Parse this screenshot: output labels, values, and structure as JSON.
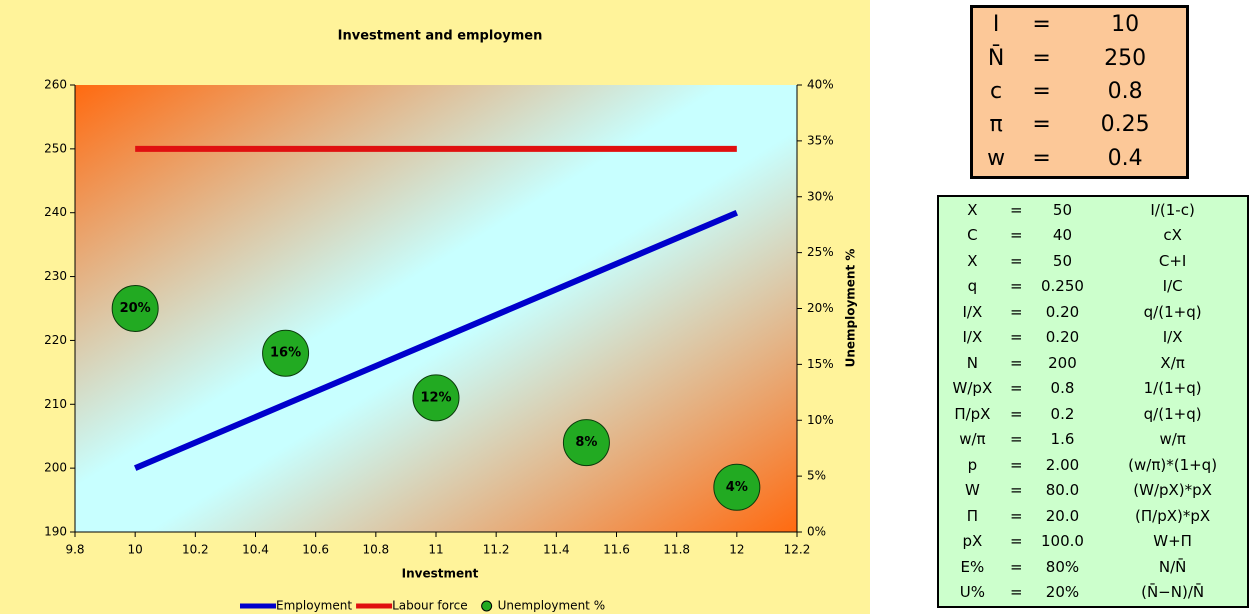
{
  "chart_data": {
    "type": "line",
    "title": "Investment and employmen",
    "x_label": "Investment",
    "y2_label": "Unemployment %",
    "x": [
      10,
      10.5,
      11,
      11.5,
      12
    ],
    "series": [
      {
        "name": "Employment",
        "color": "#0000cc",
        "values": [
          200,
          210,
          220,
          230,
          240
        ]
      },
      {
        "name": "Labour force",
        "color": "#e01010",
        "values": [
          250,
          250,
          250,
          250,
          250
        ]
      },
      {
        "name": "Unemployment %",
        "color": "#22aa22",
        "axis": "y2",
        "marker": "circle",
        "values": [
          20,
          16,
          12,
          8,
          4
        ],
        "value_labels": [
          "20%",
          "16%",
          "12%",
          "8%",
          "4%"
        ]
      }
    ],
    "xlim": [
      9.8,
      12.2
    ],
    "xticks": [
      9.8,
      10,
      10.2,
      10.4,
      10.6,
      10.8,
      11,
      11.2,
      11.4,
      11.6,
      11.8,
      12,
      12.2
    ],
    "ylim": [
      190,
      260
    ],
    "yticks": [
      190,
      200,
      210,
      220,
      230,
      240,
      250,
      260
    ],
    "y2lim": [
      0,
      40
    ],
    "y2ticks": [
      {
        "value": 0,
        "label": "0%"
      },
      {
        "value": 5,
        "label": "5%"
      },
      {
        "value": 10,
        "label": "10%"
      },
      {
        "value": 15,
        "label": "15%"
      },
      {
        "value": 20,
        "label": "20%"
      },
      {
        "value": 25,
        "label": "25%"
      },
      {
        "value": 30,
        "label": "30%"
      },
      {
        "value": 35,
        "label": "35%"
      },
      {
        "value": 40,
        "label": "40%"
      }
    ],
    "grid": false,
    "legend": "bottom"
  },
  "params": {
    "rows": [
      [
        "I",
        "=",
        "10"
      ],
      [
        "N̄",
        "=",
        "250"
      ],
      [
        "c",
        "=",
        "0.8"
      ],
      [
        "π",
        "=",
        "0.25"
      ],
      [
        "w",
        "=",
        "0.4"
      ]
    ]
  },
  "calc": {
    "rows": [
      [
        "X",
        "=",
        "50",
        "I/(1-c)"
      ],
      [
        "C",
        "=",
        "40",
        "cX"
      ],
      [
        "X",
        "=",
        "50",
        "C+I"
      ],
      [
        "q",
        "=",
        "0.250",
        "I/C"
      ],
      [
        "I/X",
        "=",
        "0.20",
        "q/(1+q)"
      ],
      [
        "I/X",
        "=",
        "0.20",
        "I/X"
      ],
      [
        "N",
        "=",
        "200",
        "X/π"
      ],
      [
        "W/pX",
        "=",
        "0.8",
        "1/(1+q)"
      ],
      [
        "Π/pX",
        "=",
        "0.2",
        "q/(1+q)"
      ],
      [
        "w/π",
        "=",
        "1.6",
        "w/π"
      ],
      [
        "p",
        "=",
        "2.00",
        "(w/π)*(1+q)"
      ],
      [
        "W",
        "=",
        "80.0",
        "(W/pX)*pX"
      ],
      [
        "Π",
        "=",
        "20.0",
        "(Π/pX)*pX"
      ],
      [
        "pX",
        "=",
        "100.0",
        "W+Π"
      ],
      [
        "E%",
        "=",
        "80%",
        "N/N̄"
      ],
      [
        "U%",
        "=",
        "20%",
        "(N̄−N)/N̄"
      ]
    ]
  }
}
